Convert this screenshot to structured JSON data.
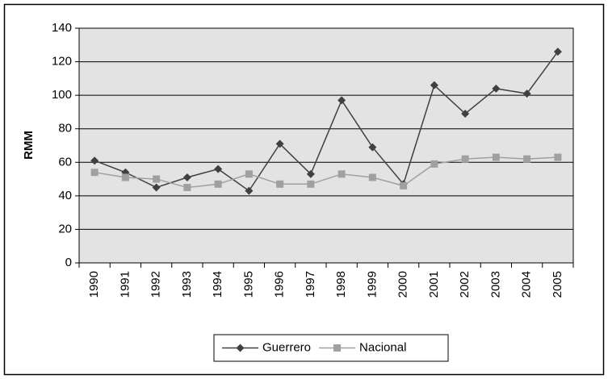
{
  "chart_data": {
    "type": "line",
    "ylabel": "RMM",
    "categories": [
      "1990",
      "1991",
      "1992",
      "1993",
      "1994",
      "1995",
      "1996",
      "1997",
      "1998",
      "1999",
      "2000",
      "2001",
      "2002",
      "2003",
      "2004",
      "2005"
    ],
    "series": [
      {
        "name": "Guerrero",
        "color": "#404040",
        "marker": "diamond",
        "values": [
          61,
          54,
          45,
          51,
          56,
          43,
          71,
          53,
          97,
          69,
          47,
          106,
          89,
          104,
          101,
          126
        ]
      },
      {
        "name": "Nacional",
        "color": "#a0a0a0",
        "marker": "square",
        "values": [
          54,
          51,
          50,
          45,
          47,
          53,
          47,
          47,
          53,
          51,
          46,
          59,
          62,
          63,
          62,
          63
        ]
      }
    ],
    "ylim": [
      0,
      140
    ],
    "yticks": [
      0,
      20,
      40,
      60,
      80,
      100,
      120,
      140
    ],
    "grid": true,
    "legend": "bottom"
  }
}
